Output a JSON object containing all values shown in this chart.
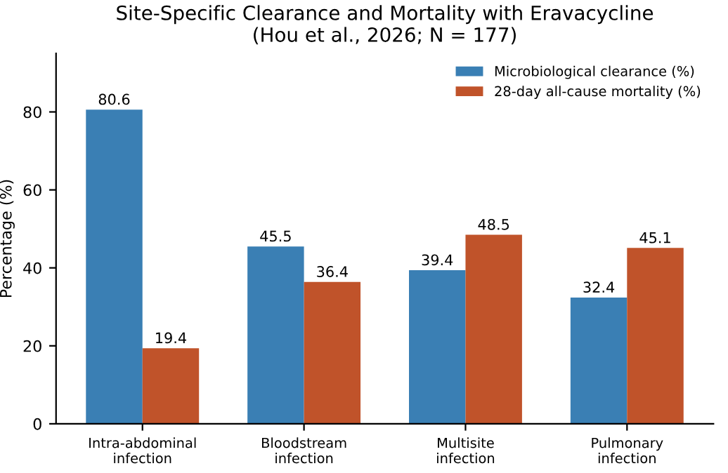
{
  "chart_data": {
    "type": "bar",
    "title": "Site-Specific Clearance and Mortality with Eravacycline\n(Hou et al., 2026; N = 177)",
    "ylabel": "Percentage (%)",
    "categories": [
      "Intra-abdominal\ninfection",
      "Bloodstream\ninfection",
      "Multisite\ninfection",
      "Pulmonary\ninfection"
    ],
    "series": [
      {
        "name": "Microbiological clearance (%)",
        "color": "#3a7fb4",
        "values": [
          80.6,
          45.5,
          39.4,
          32.4
        ]
      },
      {
        "name": "28-day all-cause mortality (%)",
        "color": "#c0532a",
        "values": [
          19.4,
          36.4,
          48.5,
          45.1
        ]
      }
    ],
    "ylim": [
      0,
      95
    ],
    "yticks": [
      0,
      20,
      40,
      60,
      80
    ],
    "data_labels": true,
    "legend": "top right",
    "grid": false
  }
}
